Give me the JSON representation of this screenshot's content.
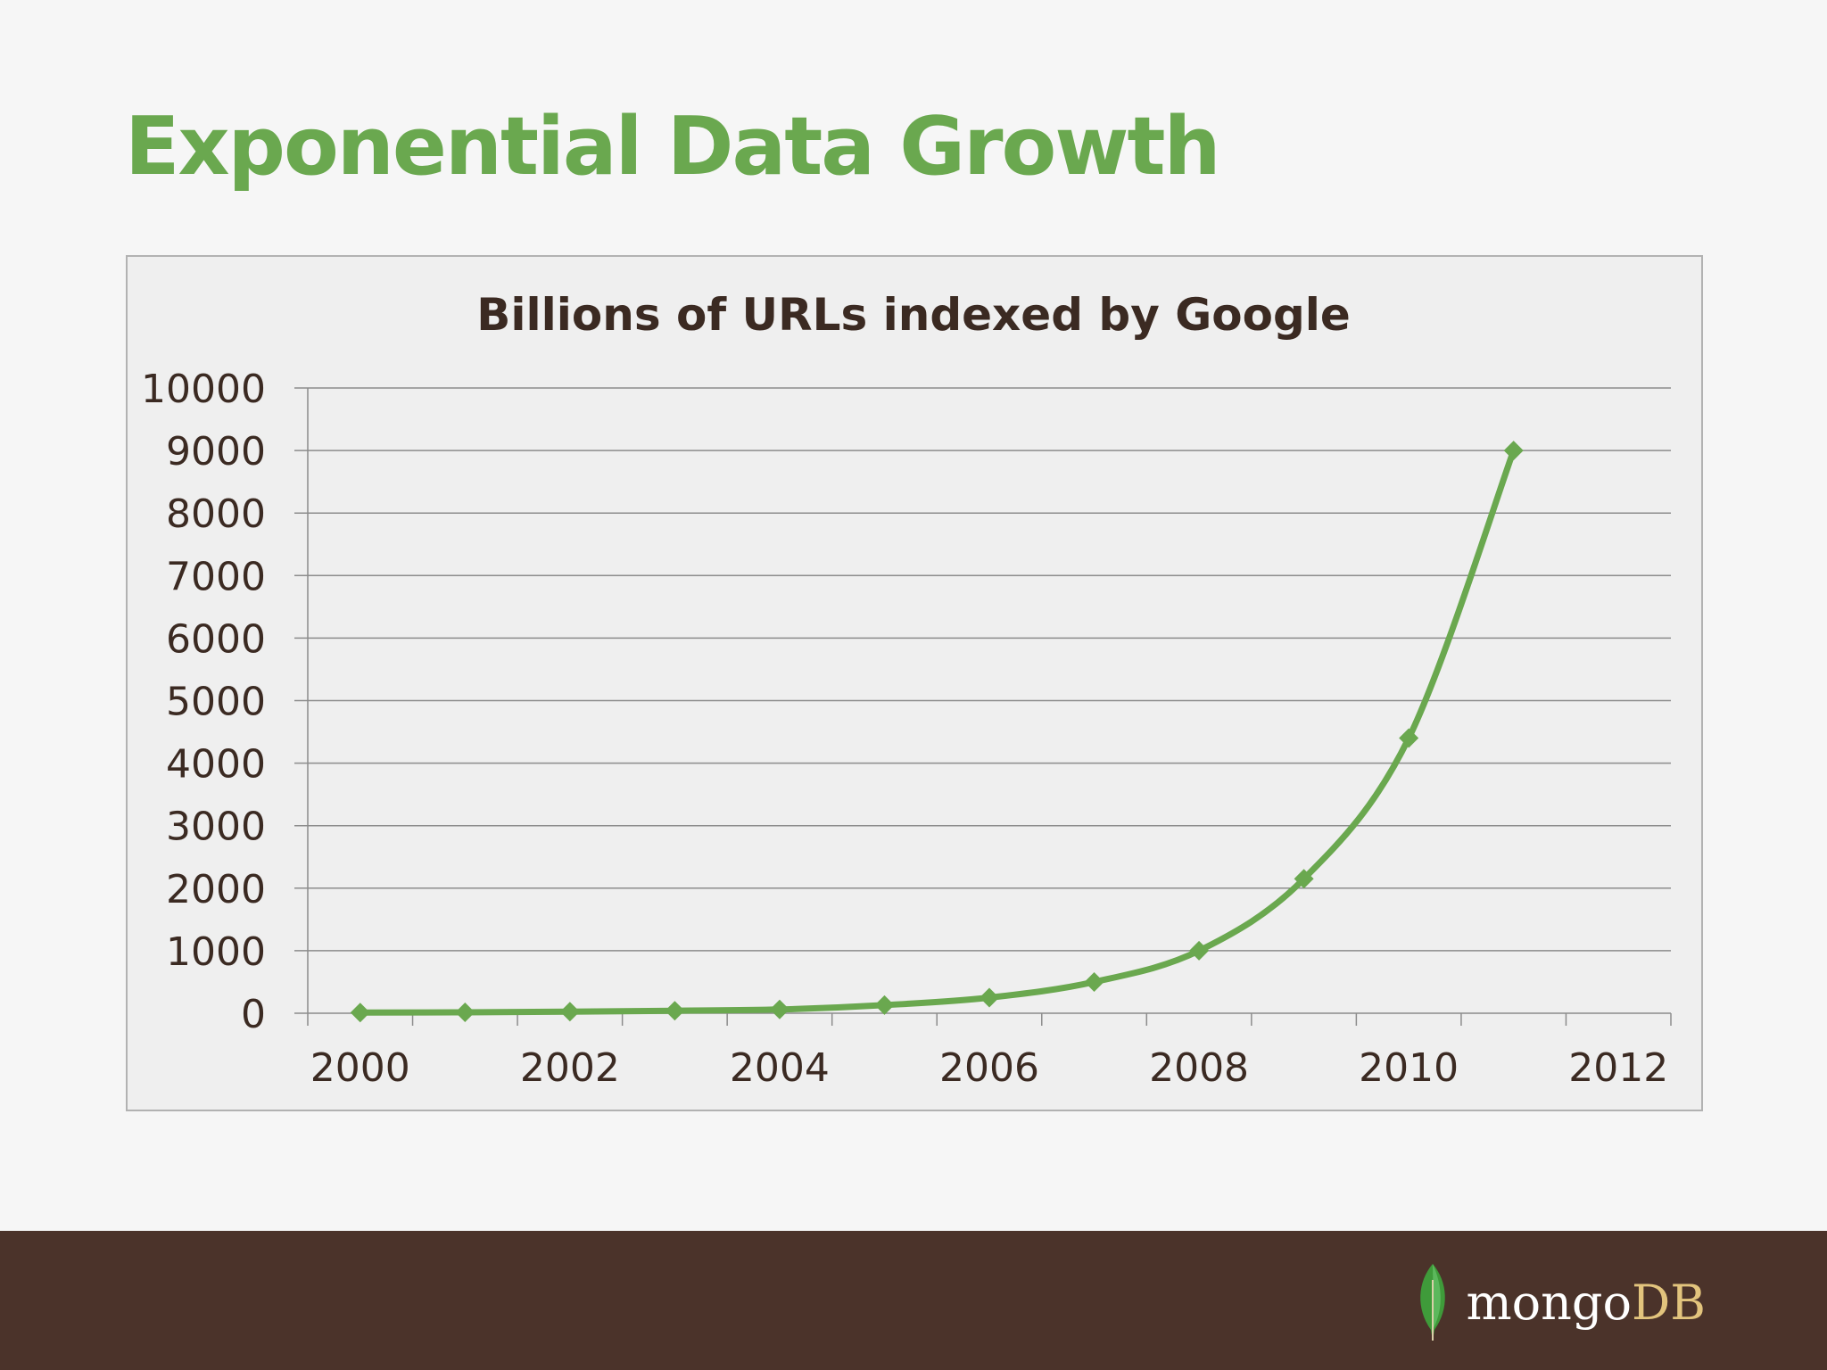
{
  "slide": {
    "title": "Exponential Data Growth"
  },
  "chart_data": {
    "type": "line",
    "title": "Billions of URLs indexed by Google",
    "xlabel": "",
    "ylabel": "",
    "xlim": [
      1999.5,
      2012.5
    ],
    "ylim": [
      0,
      10000
    ],
    "x_ticks": [
      2000,
      2002,
      2004,
      2006,
      2008,
      2010,
      2012
    ],
    "y_ticks": [
      0,
      1000,
      2000,
      3000,
      4000,
      5000,
      6000,
      7000,
      8000,
      9000,
      10000
    ],
    "grid": true,
    "legend": "none",
    "series": [
      {
        "name": "Billions of URLs indexed by Google",
        "x": [
          2000,
          2001,
          2002,
          2003,
          2004,
          2005,
          2006,
          2007,
          2008,
          2009,
          2010,
          2011
        ],
        "values": [
          10,
          15,
          25,
          40,
          60,
          130,
          250,
          500,
          1000,
          2150,
          4400,
          9000
        ],
        "color": "#6aa84f",
        "marker": "diamond"
      }
    ]
  },
  "footer": {
    "logo_part1": "mongo",
    "logo_part2": "DB",
    "background": "#4b332a"
  }
}
